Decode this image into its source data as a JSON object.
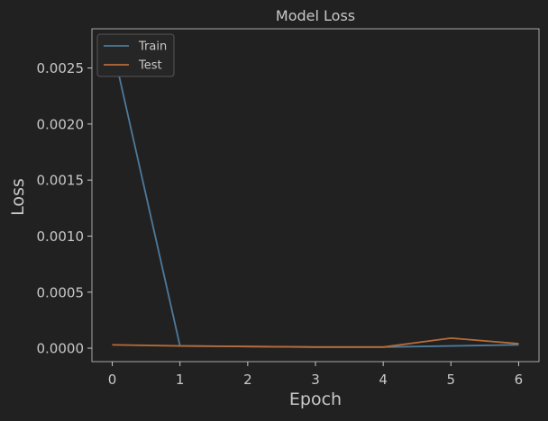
{
  "chart_data": {
    "type": "line",
    "title": "Model Loss",
    "xlabel": "Epoch",
    "ylabel": "Loss",
    "x": [
      0,
      1,
      2,
      3,
      4,
      5,
      6
    ],
    "xlim": [
      -0.3,
      6.3
    ],
    "ylim": [
      -0.00012,
      0.00285
    ],
    "xticks": [
      0,
      1,
      2,
      3,
      4,
      5,
      6
    ],
    "xtick_labels": [
      "0",
      "1",
      "2",
      "3",
      "4",
      "5",
      "6"
    ],
    "yticks": [
      0.0,
      0.0005,
      0.001,
      0.0015,
      0.002,
      0.0025
    ],
    "ytick_labels": [
      "0.0000",
      "0.0005",
      "0.0010",
      "0.0015",
      "0.0020",
      "0.0025"
    ],
    "grid": false,
    "legend_position": "top-left",
    "series": [
      {
        "name": "Train",
        "color": "#4e7a9b",
        "values": [
          0.0027,
          2e-05,
          1.5e-05,
          1e-05,
          1e-05,
          2e-05,
          3e-05
        ]
      },
      {
        "name": "Test",
        "color": "#b86b38",
        "values": [
          3e-05,
          2e-05,
          1.5e-05,
          1e-05,
          1e-05,
          9e-05,
          4e-05
        ]
      }
    ],
    "colors": {
      "background": "#212121",
      "axes_edge": "#c8c8c8",
      "text": "#c8c8c8",
      "legend_bg": "#262626",
      "legend_edge": "#555555"
    }
  }
}
